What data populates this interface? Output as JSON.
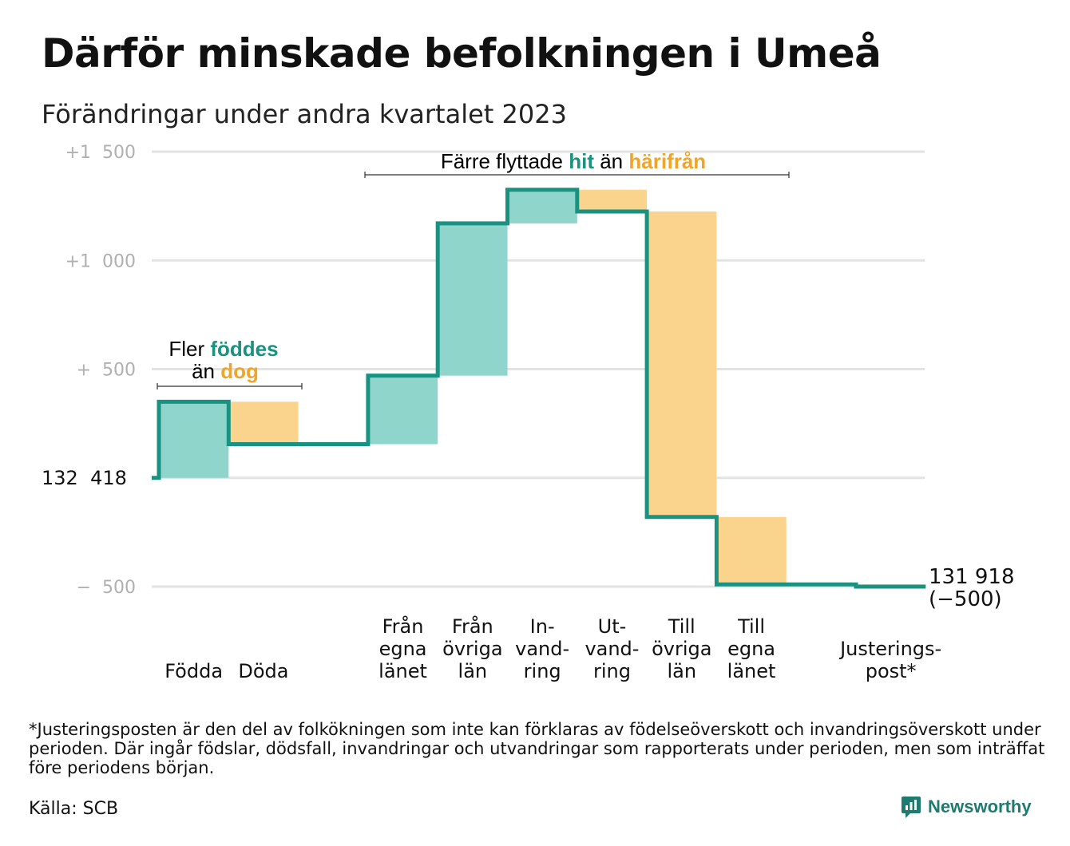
{
  "title": "Därför minskade befolkningen i Umeå",
  "subtitle": "Förändringar under andra kvartalet 2023",
  "colors": {
    "increase": "#8fd5cb",
    "decrease": "#fad48d",
    "line": "#1a9281",
    "hit": "#1a9281",
    "harifran": "#f0a52a",
    "grid": "#e3e3e3",
    "axis": "#b0b0b0"
  },
  "annotations": {
    "births": {
      "pre": "Fler ",
      "hi": "föddes",
      "line2_pre": "än ",
      "hi2": "dog"
    },
    "moves": {
      "pre": "Färre flyttade ",
      "hi": "hit",
      "mid": " än ",
      "hi2": "härifrån"
    }
  },
  "chart_data": {
    "type": "waterfall",
    "title": "Därför minskade befolkningen i Umeå",
    "subtitle": "Förändringar under andra kvartalet 2023",
    "start_value": 132418,
    "start_label": "132  418",
    "end_label_value": "131 918",
    "end_label_change": "(−500)",
    "ylim": [
      -500,
      1500
    ],
    "y_ticks": [
      {
        "value": 1500,
        "label": "+1  500"
      },
      {
        "value": 1000,
        "label": "+1  000"
      },
      {
        "value": 500,
        "label": "+  500"
      },
      {
        "value": -500,
        "label": "−  500"
      }
    ],
    "steps": [
      {
        "category": [
          "Födda"
        ],
        "change": 350,
        "kind": "increase"
      },
      {
        "category": [
          "Döda"
        ],
        "change": -195,
        "kind": "decrease"
      },
      {
        "category": [
          ""
        ],
        "change": 0,
        "kind": "gap"
      },
      {
        "category": [
          "Från",
          "egna",
          "länet"
        ],
        "change": 315,
        "kind": "increase"
      },
      {
        "category": [
          "Från",
          "övriga",
          "län"
        ],
        "change": 700,
        "kind": "increase"
      },
      {
        "category": [
          "In-",
          "vand-",
          "ring"
        ],
        "change": 155,
        "kind": "increase"
      },
      {
        "category": [
          "Ut-",
          "vand-",
          "ring"
        ],
        "change": -100,
        "kind": "decrease"
      },
      {
        "category": [
          "Till",
          "övriga",
          "län"
        ],
        "change": -1405,
        "kind": "decrease"
      },
      {
        "category": [
          "Till",
          "egna",
          "länet"
        ],
        "change": -310,
        "kind": "decrease"
      },
      {
        "category": [
          ""
        ],
        "change": 0,
        "kind": "gap"
      },
      {
        "category": [
          "Justerings-",
          "post*"
        ],
        "change": -10,
        "kind": "decrease"
      }
    ],
    "grid": true,
    "legend": "none"
  },
  "footnote": "*Justeringsposten är den del av folkökningen som inte kan förklaras av födelseöverskott och invandringsöverskott under perioden. Där ingår födslar, dödsfall, invandringar och utvandringar som rapporterats under perioden, men som inträffat före periodens början.",
  "source": "Källa: SCB",
  "brand": {
    "name": "Newsworthy",
    "icon": "newsworthy-logo-icon"
  }
}
